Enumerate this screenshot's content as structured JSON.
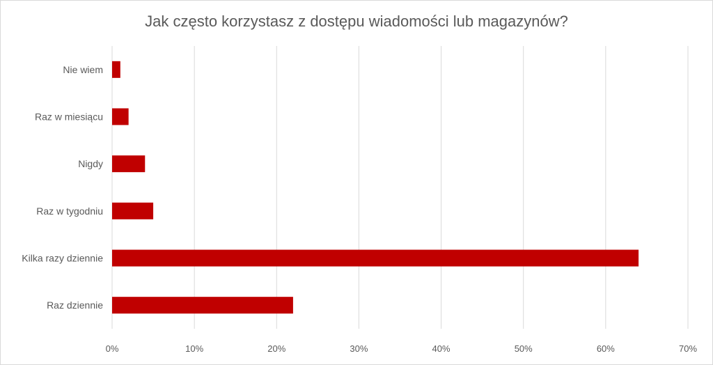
{
  "chart_data": {
    "type": "bar",
    "orientation": "horizontal",
    "title": "Jak często korzystasz z dostępu wiadomości lub magazynów?",
    "xlabel": "",
    "ylabel": "",
    "categories": [
      "Nie wiem",
      "Raz w miesiącu",
      "Nigdy",
      "Raz w tygodniu",
      "Kilka razy dziennie",
      "Raz dziennie"
    ],
    "values": [
      1,
      2,
      4,
      5,
      64,
      22
    ],
    "unit": "%",
    "xlim": [
      0,
      70
    ],
    "xticks": [
      "0%",
      "10%",
      "20%",
      "30%",
      "40%",
      "50%",
      "60%",
      "70%"
    ],
    "grid": true,
    "legend": "none",
    "bar_color": "#c00000"
  }
}
